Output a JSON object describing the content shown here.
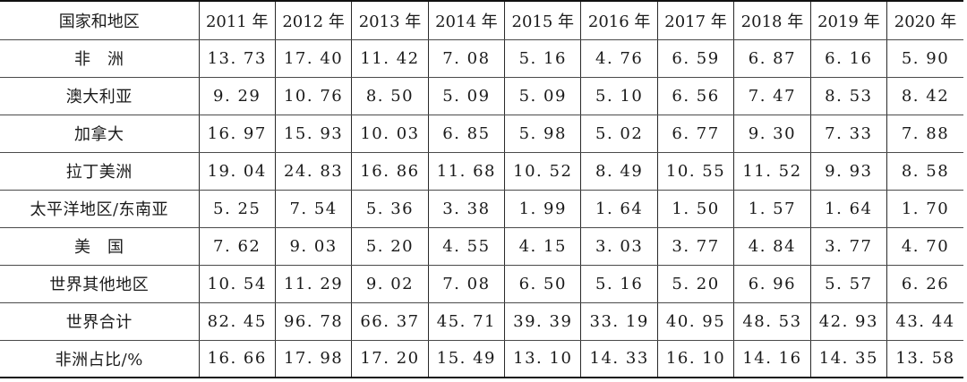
{
  "table": {
    "header": {
      "region_label": "国家和地区",
      "years": [
        "2011 年",
        "2012 年",
        "2013 年",
        "2014 年",
        "2015 年",
        "2016 年",
        "2017 年",
        "2018 年",
        "2019 年",
        "2020 年"
      ]
    },
    "rows": [
      {
        "region": "非　洲",
        "values": [
          "13. 73",
          "17. 40",
          "11. 42",
          "7. 08",
          "5. 16",
          "4. 76",
          "6. 59",
          "6. 87",
          "6. 16",
          "5. 90"
        ]
      },
      {
        "region": "澳大利亚",
        "values": [
          "9. 29",
          "10. 76",
          "8. 50",
          "5. 09",
          "5. 09",
          "5. 10",
          "6. 56",
          "7. 47",
          "8. 53",
          "8. 42"
        ]
      },
      {
        "region": "加拿大",
        "values": [
          "16. 97",
          "15. 93",
          "10. 03",
          "6. 85",
          "5. 98",
          "5. 02",
          "6. 77",
          "9. 30",
          "7. 33",
          "7. 88"
        ]
      },
      {
        "region": "拉丁美洲",
        "values": [
          "19. 04",
          "24. 83",
          "16. 86",
          "11. 68",
          "10. 52",
          "8. 49",
          "10. 55",
          "11. 52",
          "9. 93",
          "8. 58"
        ]
      },
      {
        "region": "太平洋地区/东南亚",
        "values": [
          "5. 25",
          "7. 54",
          "5. 36",
          "3. 38",
          "1. 99",
          "1. 64",
          "1. 50",
          "1. 57",
          "1. 64",
          "1. 70"
        ]
      },
      {
        "region": "美　国",
        "values": [
          "7. 62",
          "9. 03",
          "5. 20",
          "4. 55",
          "4. 15",
          "3. 03",
          "3. 77",
          "4. 84",
          "3. 77",
          "4. 70"
        ]
      },
      {
        "region": "世界其他地区",
        "values": [
          "10. 54",
          "11. 29",
          "9. 02",
          "7. 08",
          "6. 50",
          "5. 16",
          "5. 20",
          "6. 96",
          "5. 57",
          "6. 26"
        ]
      },
      {
        "region": "世界合计",
        "values": [
          "82. 45",
          "96. 78",
          "66. 37",
          "45. 71",
          "39. 39",
          "33. 19",
          "40. 95",
          "48. 53",
          "42. 93",
          "43. 44"
        ]
      },
      {
        "region": "非洲占比/%",
        "values": [
          "16. 66",
          "17. 98",
          "17. 20",
          "15. 49",
          "13. 10",
          "14. 33",
          "16. 10",
          "14. 16",
          "14. 35",
          "13. 58"
        ]
      }
    ]
  }
}
